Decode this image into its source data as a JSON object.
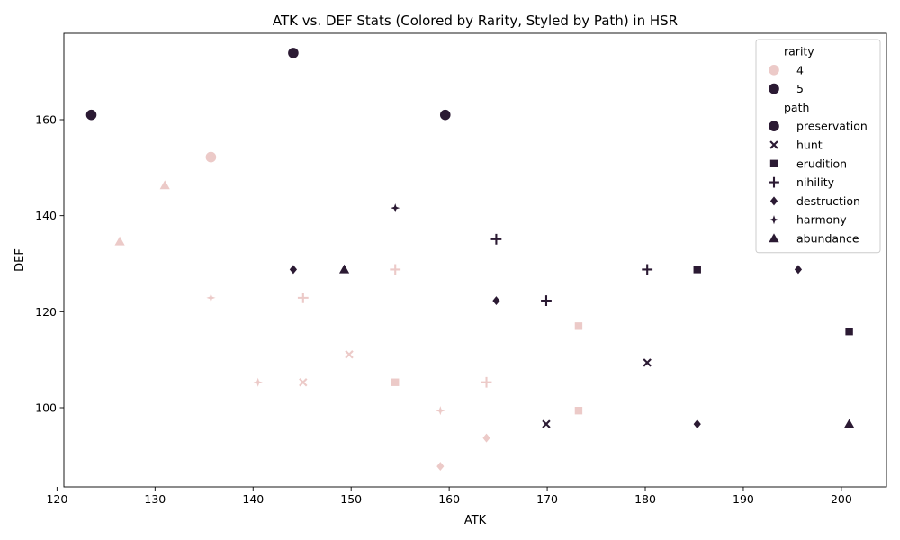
{
  "chart_data": {
    "type": "scatter",
    "title": "ATK vs. DEF Stats (Colored by Rarity, Styled by Path) in HSR",
    "xlabel": "ATK",
    "ylabel": "DEF",
    "xlim": [
      120.7,
      204.6
    ],
    "ylim": [
      83.5,
      178.0
    ],
    "xticks": [
      120,
      130,
      140,
      150,
      160,
      170,
      180,
      190,
      200
    ],
    "yticks": [
      100,
      120,
      140,
      160
    ],
    "grid": false,
    "legend_placement": "top-right",
    "legend": {
      "rarity_title": "rarity",
      "rarity_entries": [
        "4",
        "5"
      ],
      "path_title": "path",
      "path_entries": [
        "preservation",
        "hunt",
        "erudition",
        "nihility",
        "destruction",
        "harmony",
        "abundance"
      ]
    },
    "colors": {
      "4": "#eccac8",
      "5": "#2b1a33"
    },
    "markers": {
      "preservation": "circle",
      "hunt": "x",
      "erudition": "square",
      "nihility": "plus",
      "destruction": "diamond",
      "harmony": "star4",
      "abundance": "triangle"
    },
    "points": [
      {
        "atk": 123.5,
        "def": 161.0,
        "rarity": "5",
        "path": "preservation"
      },
      {
        "atk": 144.1,
        "def": 173.9,
        "rarity": "5",
        "path": "preservation"
      },
      {
        "atk": 159.6,
        "def": 161.0,
        "rarity": "5",
        "path": "preservation"
      },
      {
        "atk": 135.7,
        "def": 152.2,
        "rarity": "4",
        "path": "preservation"
      },
      {
        "atk": 131.0,
        "def": 146.3,
        "rarity": "4",
        "path": "abundance"
      },
      {
        "atk": 126.4,
        "def": 134.6,
        "rarity": "4",
        "path": "abundance"
      },
      {
        "atk": 149.3,
        "def": 128.8,
        "rarity": "5",
        "path": "abundance"
      },
      {
        "atk": 200.8,
        "def": 96.6,
        "rarity": "5",
        "path": "abundance"
      },
      {
        "atk": 154.5,
        "def": 141.6,
        "rarity": "5",
        "path": "harmony"
      },
      {
        "atk": 135.7,
        "def": 122.9,
        "rarity": "4",
        "path": "harmony"
      },
      {
        "atk": 140.5,
        "def": 105.3,
        "rarity": "4",
        "path": "harmony"
      },
      {
        "atk": 159.1,
        "def": 99.4,
        "rarity": "4",
        "path": "harmony"
      },
      {
        "atk": 164.8,
        "def": 135.1,
        "rarity": "5",
        "path": "nihility"
      },
      {
        "atk": 169.9,
        "def": 122.3,
        "rarity": "5",
        "path": "nihility"
      },
      {
        "atk": 180.2,
        "def": 128.8,
        "rarity": "5",
        "path": "nihility"
      },
      {
        "atk": 154.5,
        "def": 128.8,
        "rarity": "4",
        "path": "nihility"
      },
      {
        "atk": 145.1,
        "def": 122.9,
        "rarity": "4",
        "path": "nihility"
      },
      {
        "atk": 163.8,
        "def": 105.3,
        "rarity": "4",
        "path": "nihility"
      },
      {
        "atk": 144.1,
        "def": 128.8,
        "rarity": "5",
        "path": "destruction"
      },
      {
        "atk": 164.8,
        "def": 122.3,
        "rarity": "5",
        "path": "destruction"
      },
      {
        "atk": 195.6,
        "def": 128.8,
        "rarity": "5",
        "path": "destruction"
      },
      {
        "atk": 185.3,
        "def": 96.6,
        "rarity": "5",
        "path": "destruction"
      },
      {
        "atk": 163.8,
        "def": 93.7,
        "rarity": "4",
        "path": "destruction"
      },
      {
        "atk": 159.1,
        "def": 87.8,
        "rarity": "4",
        "path": "destruction"
      },
      {
        "atk": 185.3,
        "def": 128.8,
        "rarity": "5",
        "path": "erudition"
      },
      {
        "atk": 200.8,
        "def": 115.9,
        "rarity": "5",
        "path": "erudition"
      },
      {
        "atk": 173.2,
        "def": 117.0,
        "rarity": "4",
        "path": "erudition"
      },
      {
        "atk": 154.5,
        "def": 105.3,
        "rarity": "4",
        "path": "erudition"
      },
      {
        "atk": 173.2,
        "def": 99.4,
        "rarity": "4",
        "path": "erudition"
      },
      {
        "atk": 149.8,
        "def": 111.1,
        "rarity": "4",
        "path": "hunt"
      },
      {
        "atk": 145.1,
        "def": 105.3,
        "rarity": "4",
        "path": "hunt"
      },
      {
        "atk": 169.9,
        "def": 96.6,
        "rarity": "5",
        "path": "hunt"
      },
      {
        "atk": 180.2,
        "def": 109.4,
        "rarity": "5",
        "path": "hunt"
      }
    ]
  }
}
